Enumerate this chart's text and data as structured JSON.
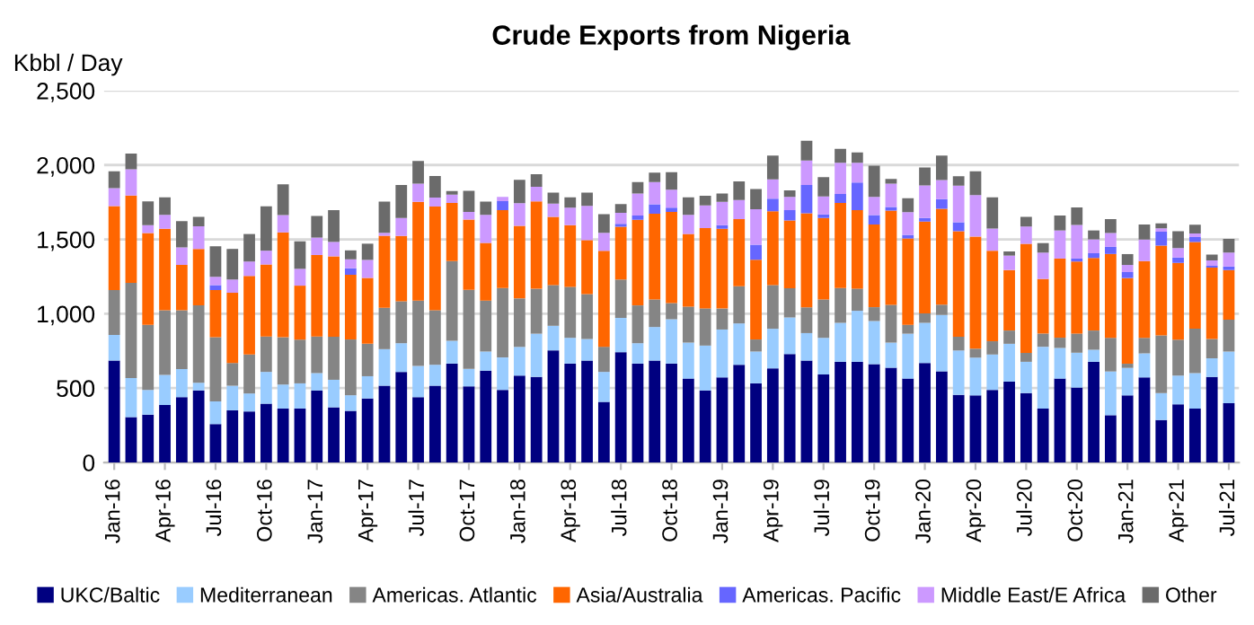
{
  "chart_data": {
    "type": "bar",
    "stacked": true,
    "title": "Crude Exports from Nigeria",
    "ylabel": "Kbbl / Day",
    "categories": [
      "Jan-16",
      null,
      null,
      "Apr-16",
      null,
      null,
      "Jul-16",
      null,
      null,
      "Oct-16",
      null,
      null,
      "Jan-17",
      null,
      null,
      "Apr-17",
      null,
      null,
      "Jul-17",
      null,
      null,
      "Oct-17",
      null,
      null,
      "Jan-18",
      null,
      null,
      "Apr-18",
      null,
      null,
      "Jul-18",
      null,
      null,
      "Oct-18",
      null,
      null,
      "Jan-19",
      null,
      null,
      "Apr-19",
      null,
      null,
      "Jul-19",
      null,
      null,
      "Oct-19",
      null,
      null,
      "Jan-20",
      null,
      null,
      "Apr-20",
      null,
      null,
      "Jul-20",
      null,
      null,
      "Oct-20",
      null,
      null,
      "Jan-21",
      null,
      null,
      "Apr-21",
      null,
      null,
      "Jul-21"
    ],
    "series": [
      {
        "name": "UKC/Baltic",
        "color": "#000080",
        "values": [
          685,
          305,
          322,
          387,
          439,
          484,
          258,
          351,
          343,
          395,
          363,
          363,
          484,
          371,
          347,
          431,
          516,
          609,
          439,
          516,
          665,
          512,
          617,
          488,
          584,
          576,
          754,
          665,
          685,
          407,
          742,
          665,
          685,
          665,
          564,
          484,
          572,
          657,
          532,
          633,
          729,
          685,
          592,
          677,
          677,
          661,
          637,
          564,
          669,
          613,
          455,
          451,
          488,
          544,
          467,
          363,
          564,
          504,
          677,
          318,
          451,
          572,
          286,
          391,
          363,
          576,
          399
        ]
      },
      {
        "name": "Mediterranean",
        "color": "#99ccff",
        "values": [
          173,
          262,
          165,
          202,
          189,
          52,
          153,
          165,
          121,
          214,
          161,
          169,
          117,
          185,
          105,
          149,
          246,
          193,
          210,
          141,
          153,
          117,
          129,
          218,
          193,
          290,
          165,
          173,
          145,
          202,
          230,
          137,
          226,
          298,
          242,
          302,
          322,
          278,
          214,
          266,
          246,
          185,
          246,
          262,
          343,
          290,
          169,
          302,
          270,
          379,
          298,
          254,
          238,
          254,
          210,
          415,
          206,
          234,
          81,
          294,
          185,
          161,
          181,
          193,
          238,
          125,
          347
        ]
      },
      {
        "name": "Americas. Atlantic",
        "color": "#858585",
        "values": [
          302,
          640,
          439,
          435,
          395,
          520,
          431,
          153,
          262,
          238,
          318,
          294,
          246,
          290,
          375,
          218,
          278,
          282,
          439,
          367,
          536,
          532,
          343,
          467,
          326,
          302,
          274,
          343,
          302,
          169,
          258,
          254,
          185,
          109,
          242,
          250,
          141,
          250,
          81,
          294,
          197,
          173,
          258,
          234,
          149,
          93,
          254,
          60,
          64,
          69,
          93,
          60,
          89,
          89,
          60,
          89,
          69,
          129,
          129,
          226,
          28,
          105,
          387,
          242,
          298,
          129,
          214
        ]
      },
      {
        "name": "Asia/Australia",
        "color": "#ff6600",
        "values": [
          564,
          588,
          617,
          548,
          306,
          379,
          318,
          472,
          528,
          484,
          705,
          363,
          548,
          540,
          435,
          443,
          484,
          439,
          665,
          697,
          391,
          472,
          387,
          524,
          488,
          588,
          459,
          415,
          363,
          645,
          355,
          576,
          576,
          613,
          488,
          540,
          536,
          451,
          536,
          496,
          455,
          633,
          548,
          572,
          528,
          556,
          633,
          580,
          617,
          645,
          709,
          754,
          609,
          407,
          733,
          367,
          532,
          484,
          488,
          564,
          576,
          516,
          604,
          516,
          584,
          480,
          334
        ]
      },
      {
        "name": "Americas. Pacific",
        "color": "#6666ff",
        "values": [
          0,
          0,
          0,
          0,
          0,
          0,
          32,
          0,
          0,
          0,
          0,
          0,
          0,
          0,
          44,
          0,
          0,
          0,
          0,
          0,
          0,
          0,
          0,
          60,
          0,
          0,
          0,
          0,
          0,
          0,
          20,
          28,
          64,
          28,
          0,
          0,
          24,
          0,
          101,
          85,
          69,
          189,
          24,
          60,
          185,
          64,
          24,
          24,
          24,
          64,
          60,
          0,
          0,
          0,
          0,
          0,
          0,
          20,
          32,
          48,
          40,
          0,
          93,
          36,
          32,
          12,
          24
        ]
      },
      {
        "name": "Middle East/E Africa",
        "color": "#cc99ff",
        "values": [
          121,
          177,
          52,
          93,
          117,
          153,
          56,
          89,
          97,
          93,
          117,
          113,
          117,
          97,
          60,
          121,
          20,
          121,
          121,
          60,
          56,
          52,
          189,
          28,
          153,
          97,
          89,
          117,
          230,
          121,
          73,
          149,
          149,
          121,
          129,
          153,
          157,
          129,
          238,
          129,
          89,
          165,
          121,
          210,
          133,
          121,
          157,
          153,
          218,
          129,
          246,
          278,
          149,
          97,
          117,
          177,
          189,
          226,
          93,
          93,
          48,
          145,
          24,
          64,
          24,
          36,
          93
        ]
      },
      {
        "name": "Other",
        "color": "#6b6b6b",
        "values": [
          113,
          105,
          161,
          117,
          177,
          64,
          206,
          206,
          185,
          298,
          206,
          185,
          145,
          214,
          60,
          109,
          210,
          222,
          153,
          145,
          24,
          141,
          89,
          0,
          157,
          85,
          73,
          69,
          89,
          125,
          60,
          77,
          64,
          117,
          117,
          64,
          56,
          125,
          137,
          161,
          44,
          133,
          129,
          93,
          69,
          210,
          32,
          93,
          121,
          165,
          64,
          161,
          210,
          28,
          64,
          64,
          101,
          117,
          60,
          93,
          73,
          101,
          32,
          113,
          60,
          40,
          93
        ]
      }
    ],
    "ylim": [
      0,
      2500
    ],
    "yticks": [
      {
        "value": 0,
        "label": "0"
      },
      {
        "value": 500,
        "label": "500"
      },
      {
        "value": 1000,
        "label": "1,000"
      },
      {
        "value": 1500,
        "label": "1,500"
      },
      {
        "value": 2000,
        "label": "2,000"
      },
      {
        "value": 2500,
        "label": "2,500"
      }
    ],
    "grid": "y",
    "legend": "bottom"
  }
}
